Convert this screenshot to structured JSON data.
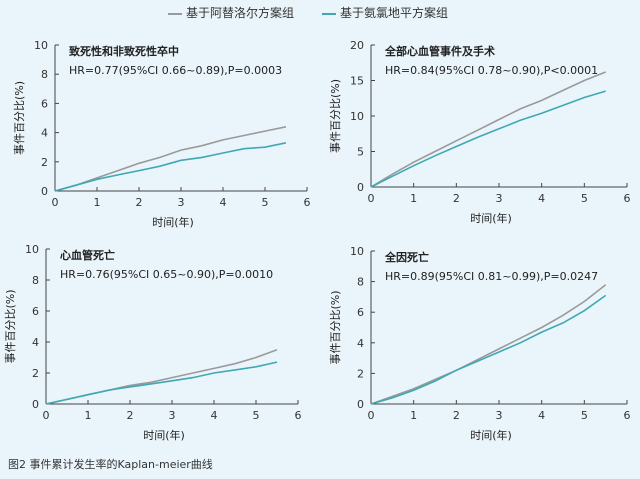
{
  "legend": {
    "series1": "基于阿替洛尔方案组",
    "series2": "基于氨氯地平方案组",
    "color1": "#9a9a9a",
    "color2": "#3fa8b3"
  },
  "caption": "图2 事件累计发生率的Kaplan-meier曲线",
  "chart_data": [
    {
      "type": "line",
      "title": "致死性和非致死性卒中",
      "subtitle": "HR=0.77(95%CI 0.66~0.89),P=0.0003",
      "xlabel": "时间(年)",
      "ylabel": "事件百分比(%)",
      "xlim": [
        0,
        6
      ],
      "ylim": [
        0,
        10
      ],
      "xticks": [
        0,
        1,
        2,
        3,
        4,
        5,
        6
      ],
      "yticks": [
        0,
        2,
        4,
        6,
        8,
        10
      ],
      "series": [
        {
          "name": "基于阿替洛尔方案组",
          "x": [
            0,
            0.5,
            1,
            1.5,
            2,
            2.5,
            3,
            3.5,
            4,
            4.5,
            5,
            5.5
          ],
          "y": [
            0,
            0.4,
            0.9,
            1.4,
            1.9,
            2.3,
            2.8,
            3.1,
            3.5,
            3.8,
            4.1,
            4.4
          ]
        },
        {
          "name": "基于氨氯地平方案组",
          "x": [
            0,
            0.5,
            1,
            1.5,
            2,
            2.5,
            3,
            3.5,
            4,
            4.5,
            5,
            5.5
          ],
          "y": [
            0,
            0.4,
            0.8,
            1.1,
            1.4,
            1.7,
            2.1,
            2.3,
            2.6,
            2.9,
            3.0,
            3.3
          ]
        }
      ]
    },
    {
      "type": "line",
      "title": "全部心血管事件及手术",
      "subtitle": "HR=0.84(95%CI 0.78~0.90),P<0.0001",
      "xlabel": "时间(年)",
      "ylabel": "事件百分比(%)",
      "xlim": [
        0,
        6
      ],
      "ylim": [
        0,
        20
      ],
      "xticks": [
        0,
        1,
        2,
        3,
        4,
        5,
        6
      ],
      "yticks": [
        0,
        5,
        10,
        15,
        20
      ],
      "series": [
        {
          "name": "基于阿替洛尔方案组",
          "x": [
            0,
            0.5,
            1,
            1.5,
            2,
            2.5,
            3,
            3.5,
            4,
            4.5,
            5,
            5.5
          ],
          "y": [
            0,
            1.8,
            3.5,
            5.0,
            6.5,
            8.0,
            9.5,
            11.0,
            12.2,
            13.6,
            15.0,
            16.2
          ]
        },
        {
          "name": "基于氨氯地平方案组",
          "x": [
            0,
            0.5,
            1,
            1.5,
            2,
            2.5,
            3,
            3.5,
            4,
            4.5,
            5,
            5.5
          ],
          "y": [
            0,
            1.5,
            3.0,
            4.4,
            5.7,
            7.0,
            8.2,
            9.4,
            10.4,
            11.5,
            12.6,
            13.5
          ]
        }
      ]
    },
    {
      "type": "line",
      "title": "心血管死亡",
      "subtitle": "HR=0.76(95%CI 0.65~0.90),P=0.0010",
      "xlabel": "时间(年)",
      "ylabel": "事件百分比(%)",
      "xlim": [
        0,
        6
      ],
      "ylim": [
        0,
        10
      ],
      "xticks": [
        0,
        1,
        2,
        3,
        4,
        5,
        6
      ],
      "yticks": [
        0,
        2,
        4,
        6,
        8,
        10
      ],
      "series": [
        {
          "name": "基于阿替洛尔方案组",
          "x": [
            0,
            0.5,
            1,
            1.5,
            2,
            2.5,
            3,
            3.5,
            4,
            4.5,
            5,
            5.5
          ],
          "y": [
            0,
            0.3,
            0.6,
            0.9,
            1.2,
            1.4,
            1.7,
            2.0,
            2.3,
            2.6,
            3.0,
            3.5
          ]
        },
        {
          "name": "基于氨氯地平方案组",
          "x": [
            0,
            0.5,
            1,
            1.5,
            2,
            2.5,
            3,
            3.5,
            4,
            4.5,
            5,
            5.5
          ],
          "y": [
            0,
            0.3,
            0.6,
            0.9,
            1.1,
            1.3,
            1.5,
            1.7,
            2.0,
            2.2,
            2.4,
            2.7
          ]
        }
      ]
    },
    {
      "type": "line",
      "title": "全因死亡",
      "subtitle": "HR=0.89(95%CI 0.81~0.99),P=0.0247",
      "xlabel": "时间(年)",
      "ylabel": "事件百分比(%)",
      "xlim": [
        0,
        6
      ],
      "ylim": [
        0,
        10
      ],
      "xticks": [
        0,
        1,
        2,
        3,
        4,
        5,
        6
      ],
      "yticks": [
        0,
        2,
        4,
        6,
        8,
        10
      ],
      "series": [
        {
          "name": "基于阿替洛尔方案组",
          "x": [
            0,
            0.5,
            1,
            1.5,
            2,
            2.5,
            3,
            3.5,
            4,
            4.5,
            5,
            5.5
          ],
          "y": [
            0,
            0.5,
            1.0,
            1.6,
            2.2,
            2.9,
            3.6,
            4.3,
            5.0,
            5.8,
            6.7,
            7.8
          ]
        },
        {
          "name": "基于氨氯地平方案组",
          "x": [
            0,
            0.5,
            1,
            1.5,
            2,
            2.5,
            3,
            3.5,
            4,
            4.5,
            5,
            5.5
          ],
          "y": [
            0,
            0.4,
            0.9,
            1.5,
            2.2,
            2.8,
            3.4,
            4.0,
            4.7,
            5.3,
            6.1,
            7.1
          ]
        }
      ]
    }
  ]
}
